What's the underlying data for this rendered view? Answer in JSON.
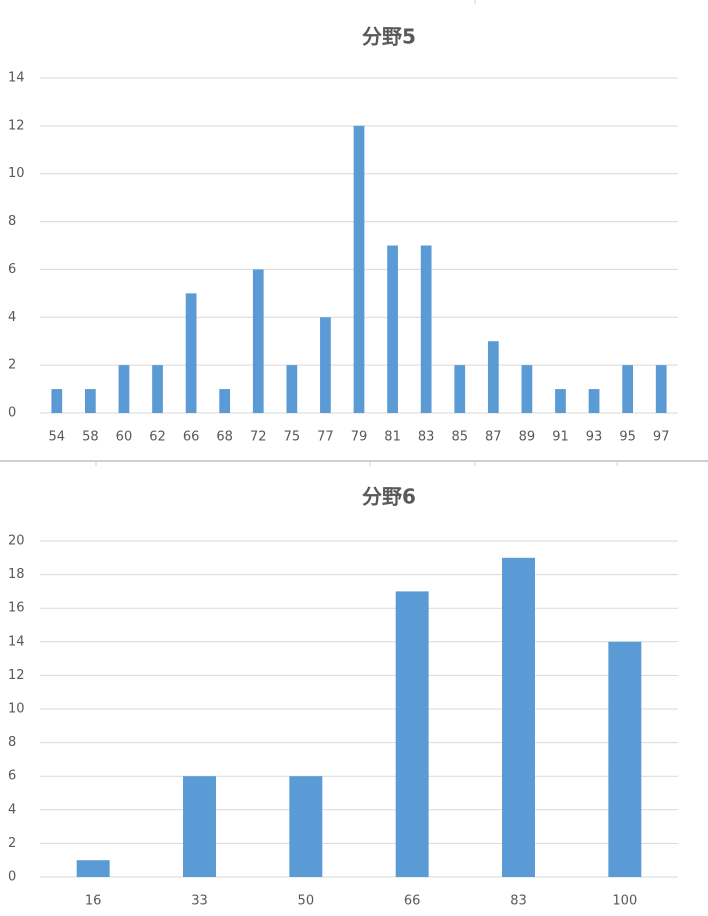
{
  "chart_data": [
    {
      "type": "bar",
      "title": "分野5",
      "categories": [
        "54",
        "58",
        "60",
        "62",
        "66",
        "68",
        "72",
        "75",
        "77",
        "79",
        "81",
        "83",
        "85",
        "87",
        "89",
        "91",
        "93",
        "95",
        "97"
      ],
      "values": [
        1,
        1,
        2,
        2,
        5,
        1,
        6,
        2,
        4,
        12,
        7,
        7,
        2,
        3,
        2,
        1,
        1,
        2,
        2
      ],
      "color": "#5b9bd5",
      "ylim": [
        0,
        14
      ],
      "yticks": [
        0,
        2,
        4,
        6,
        8,
        10,
        12,
        14
      ],
      "grid": true
    },
    {
      "type": "bar",
      "title": "分野6",
      "categories": [
        "16",
        "33",
        "50",
        "66",
        "83",
        "100"
      ],
      "values": [
        1,
        6,
        6,
        17,
        19,
        14
      ],
      "color": "#5b9bd5",
      "ylim": [
        0,
        20
      ],
      "yticks": [
        0,
        2,
        4,
        6,
        8,
        10,
        12,
        14,
        16,
        18,
        20
      ],
      "grid": true
    }
  ]
}
